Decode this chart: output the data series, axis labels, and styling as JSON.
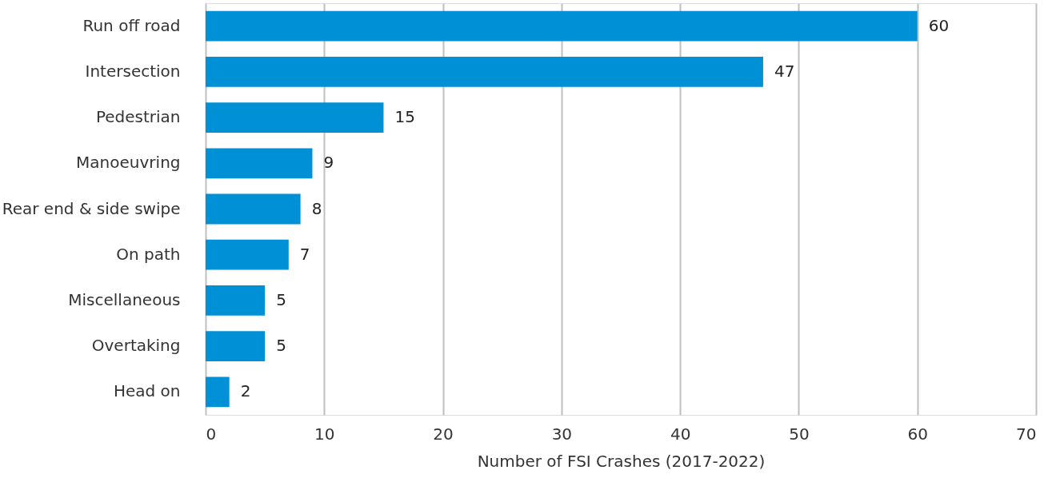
{
  "chart_data": {
    "type": "bar",
    "orientation": "horizontal",
    "xlabel": "Number of FSI Crashes (2017-2022)",
    "categories": [
      "Run off road",
      "Intersection",
      "Pedestrian",
      "Manoeuvring",
      "Rear end & side swipe",
      "On path",
      "Miscellaneous",
      "Overtaking",
      "Head on"
    ],
    "values": [
      60,
      47,
      15,
      9,
      8,
      7,
      5,
      5,
      2
    ],
    "color": "#0090d6",
    "xlim": [
      0,
      70
    ],
    "xticks": [
      0,
      10,
      20,
      30,
      40,
      50,
      60,
      70
    ],
    "grid": "x",
    "data_labels": true
  }
}
